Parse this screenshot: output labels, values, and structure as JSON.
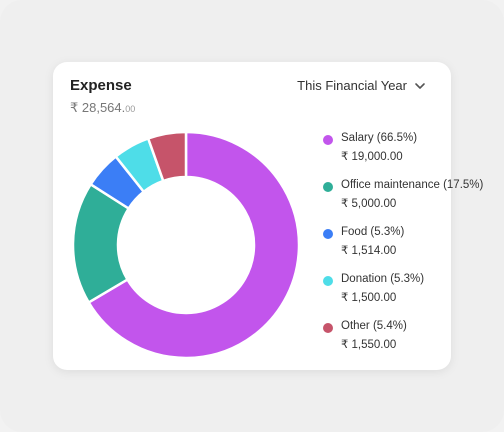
{
  "card": {
    "title": "Expense",
    "total_main": "₹ 28,564.",
    "total_decimal": "00",
    "period_label": "This Financial Year",
    "period_icon": "chevron-down-icon"
  },
  "legend": [
    {
      "label": "Salary (66.5%)",
      "value": "₹ 19,000.00",
      "color": "#c255ec"
    },
    {
      "label": "Office maintenance (17.5%)",
      "value": "₹ 5,000.00",
      "color": "#2fae98"
    },
    {
      "label": "Food (5.3%)",
      "value": "₹ 1,514.00",
      "color": "#3b7ef6"
    },
    {
      "label": "Donation (5.3%)",
      "value": "₹ 1,500.00",
      "color": "#4edde8"
    },
    {
      "label": "Other (5.4%)",
      "value": "₹ 1,550.00",
      "color": "#c6546a"
    }
  ],
  "chart_data": {
    "type": "pie",
    "variant": "donut",
    "categories": [
      "Salary",
      "Office maintenance",
      "Food",
      "Donation",
      "Other"
    ],
    "values": [
      19000,
      5000,
      1514,
      1500,
      1550
    ],
    "percentages": [
      66.5,
      17.5,
      5.3,
      5.3,
      5.4
    ],
    "colors": [
      "#c255ec",
      "#2fae98",
      "#3b7ef6",
      "#4edde8",
      "#c6546a"
    ],
    "start_angle_deg": 0,
    "direction": "clockwise"
  }
}
